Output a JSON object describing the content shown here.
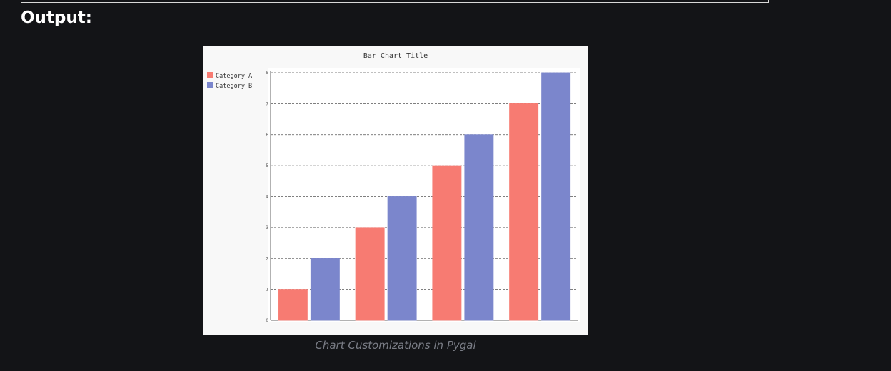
{
  "section": {
    "heading": "Output:"
  },
  "figure": {
    "caption": "Chart Customizations in Pygal"
  },
  "chart_data": {
    "type": "bar",
    "title": "Bar Chart Title",
    "xlabel": "",
    "ylabel": "",
    "categories": [
      "",
      "",
      "",
      ""
    ],
    "series": [
      {
        "name": "Category A",
        "values": [
          1,
          3,
          5,
          7
        ],
        "color": "#f77b72"
      },
      {
        "name": "Category B",
        "values": [
          2,
          4,
          6,
          8
        ],
        "color": "#7b86cc"
      }
    ],
    "ylim": [
      0,
      8
    ],
    "yticks": [
      "0",
      "1",
      "2",
      "3",
      "4",
      "5",
      "6",
      "7",
      "8"
    ],
    "grid": true,
    "legend_position": "top-left",
    "background": "#f8f8f8",
    "plot_background": "#ffffff"
  }
}
